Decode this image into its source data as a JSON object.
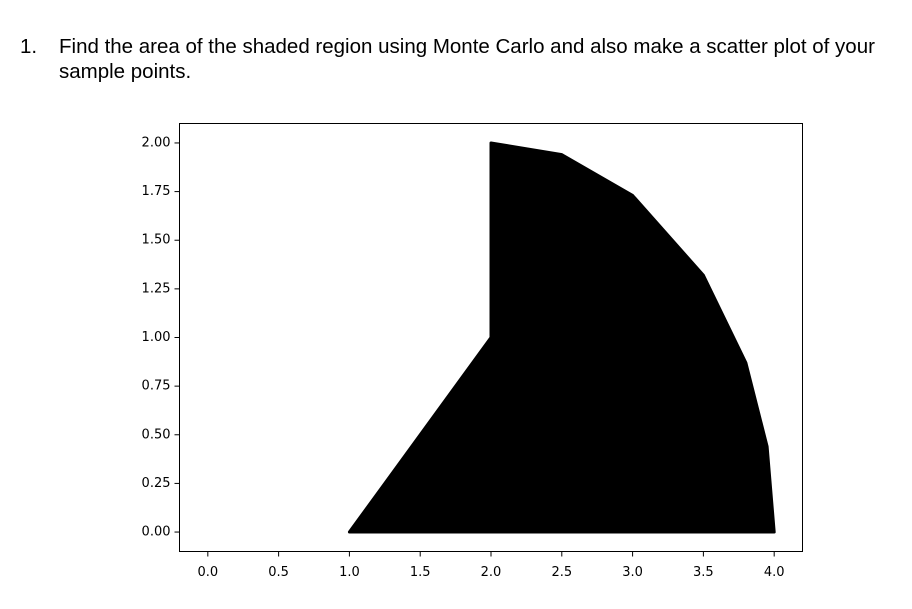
{
  "question": {
    "number": "1.",
    "text": "Find the area of the shaded region using Monte Carlo and also make a scatter plot of your sample points."
  },
  "chart_data": {
    "type": "area",
    "color": "#000000",
    "x": [
      1,
      2,
      2,
      2.5,
      3,
      3.5,
      3.8,
      3.95,
      4
    ],
    "values": [
      0,
      1,
      2,
      1.94,
      1.73,
      1.32,
      0.87,
      0.44,
      0
    ],
    "xlim": [
      -0.2,
      4.2
    ],
    "xticks": [
      {
        "value": 0,
        "label": "0.0"
      },
      0.5,
      {
        "value": 1,
        "label": "1.0"
      },
      1.5,
      {
        "value": 2,
        "label": "2.0"
      },
      2.5,
      {
        "value": 3,
        "label": "3.0"
      },
      3.5,
      {
        "value": 4,
        "label": "4.0"
      }
    ],
    "ylim": [
      -0.1,
      2.1
    ],
    "yticks": [
      {
        "value": 0,
        "label": "0.00"
      },
      0.25,
      {
        "value": 0.5,
        "label": "0.50"
      },
      0.75,
      {
        "value": 1,
        "label": "1.00"
      },
      1.25,
      {
        "value": 1.5,
        "label": "1.50"
      },
      1.75,
      {
        "value": 2,
        "label": "2.00"
      }
    ]
  }
}
